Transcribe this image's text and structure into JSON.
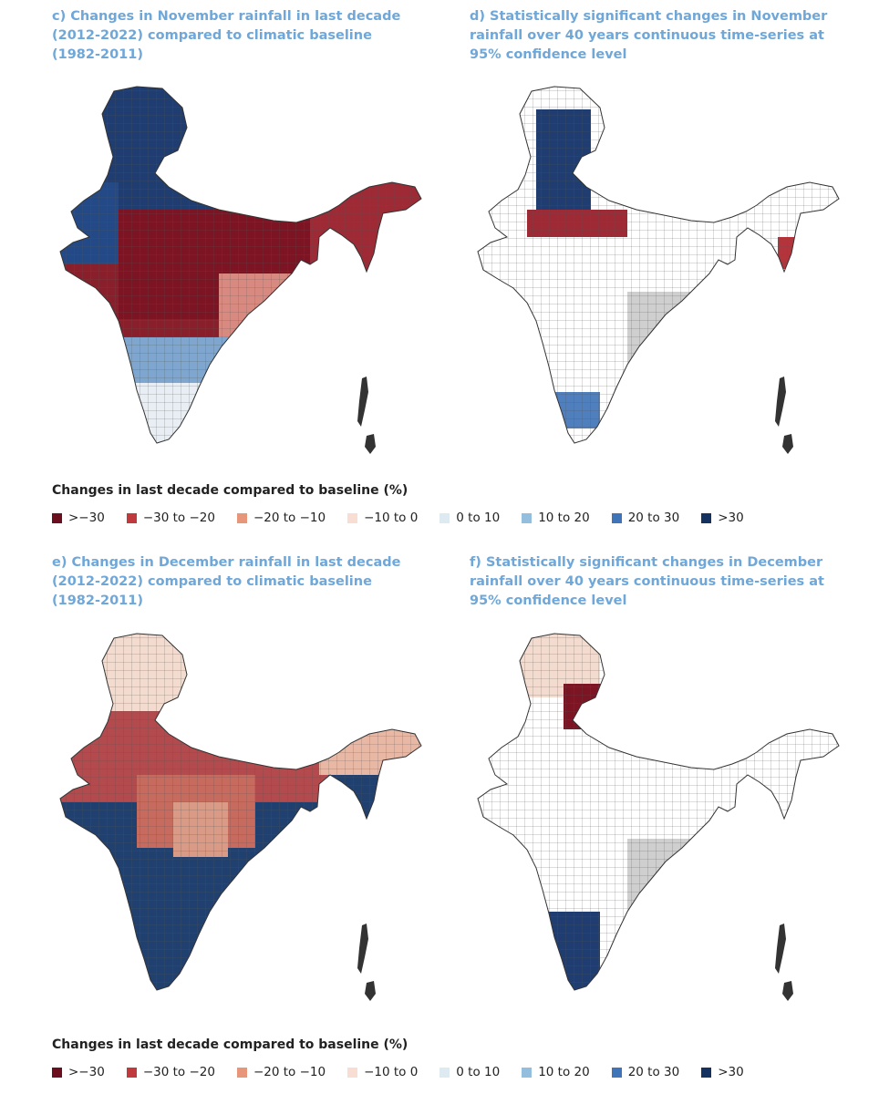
{
  "panels": [
    {
      "id": "c",
      "title": "c) Changes in November rainfall in last decade (2012-2022) compared to climatic baseline (1982-2011)"
    },
    {
      "id": "d",
      "title": "d) Statistically significant changes in November rainfall over 40 years continuous time-series at 95% confidence level"
    },
    {
      "id": "e",
      "title": "e) Changes in December rainfall in last decade (2012-2022) compared to climatic baseline (1982-2011)"
    },
    {
      "id": "f",
      "title": "f) Statistically significant changes in December rainfall over 40 years continuous time-series at 95% confidence level"
    }
  ],
  "legend": {
    "title": "Changes in last decade compared to baseline (%)",
    "items": [
      {
        "label": ">−30",
        "color": "#6b0f1f"
      },
      {
        "label": "−30 to −20",
        "color": "#c0393c"
      },
      {
        "label": "−20 to −10",
        "color": "#e8967a"
      },
      {
        "label": "−10 to 0",
        "color": "#f8ddd2"
      },
      {
        "label": "0 to 10",
        "color": "#deeaf2"
      },
      {
        "label": "10 to 20",
        "color": "#93bedd"
      },
      {
        "label": "20 to 30",
        "color": "#3f74b8"
      },
      {
        "label": ">30",
        "color": "#15315f"
      }
    ]
  },
  "legend2": {
    "title": "Changes in last decade compared to baseline (%)",
    "items": [
      {
        "label": ">−30",
        "color": "#6b0f1f"
      },
      {
        "label": "−30 to −20",
        "color": "#c0393c"
      },
      {
        "label": "−20 to −10",
        "color": "#e8967a"
      },
      {
        "label": "−10 to 0",
        "color": "#f8ddd2"
      },
      {
        "label": "0 to 10",
        "color": "#deeaf2"
      },
      {
        "label": "10 to 20",
        "color": "#93bedd"
      },
      {
        "label": "20 to 30",
        "color": "#3f74b8"
      },
      {
        "label": ">30",
        "color": "#15315f"
      }
    ]
  }
}
